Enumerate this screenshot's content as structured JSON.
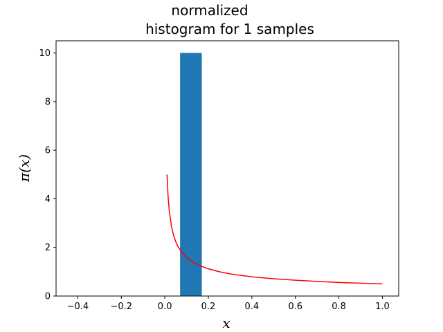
{
  "chart_data": {
    "type": "bar",
    "title_lines": [
      "normalized",
      "histogram for 1 samples"
    ],
    "xlabel": "x",
    "ylabel": "π(x)",
    "xlim": [
      -0.5,
      1.075
    ],
    "ylim": [
      0,
      10.5
    ],
    "x_ticks": [
      -0.4,
      -0.2,
      0.0,
      0.2,
      0.4,
      0.6,
      0.8,
      1.0
    ],
    "x_tick_labels": [
      "−0.4",
      "−0.2",
      "0.0",
      "0.2",
      "0.4",
      "0.6",
      "0.8",
      "1.0"
    ],
    "y_ticks": [
      0,
      2,
      4,
      6,
      8,
      10
    ],
    "y_tick_labels": [
      "0",
      "2",
      "4",
      "6",
      "8",
      "10"
    ],
    "grid": false,
    "bars": [
      {
        "x_start": 0.07,
        "x_end": 0.17,
        "value": 10,
        "color": "#1f77b4"
      }
    ],
    "curve": {
      "color": "#ff0000",
      "points": [
        [
          0.01,
          5.0
        ],
        [
          0.015,
          4.08
        ],
        [
          0.02,
          3.54
        ],
        [
          0.03,
          2.89
        ],
        [
          0.04,
          2.5
        ],
        [
          0.05,
          2.24
        ],
        [
          0.06,
          2.04
        ],
        [
          0.08,
          1.77
        ],
        [
          0.1,
          1.58
        ],
        [
          0.12,
          1.44
        ],
        [
          0.15,
          1.29
        ],
        [
          0.2,
          1.12
        ],
        [
          0.25,
          1.0
        ],
        [
          0.3,
          0.91
        ],
        [
          0.35,
          0.85
        ],
        [
          0.4,
          0.79
        ],
        [
          0.5,
          0.71
        ],
        [
          0.6,
          0.65
        ],
        [
          0.7,
          0.6
        ],
        [
          0.8,
          0.56
        ],
        [
          0.9,
          0.53
        ],
        [
          1.0,
          0.5
        ]
      ]
    }
  }
}
